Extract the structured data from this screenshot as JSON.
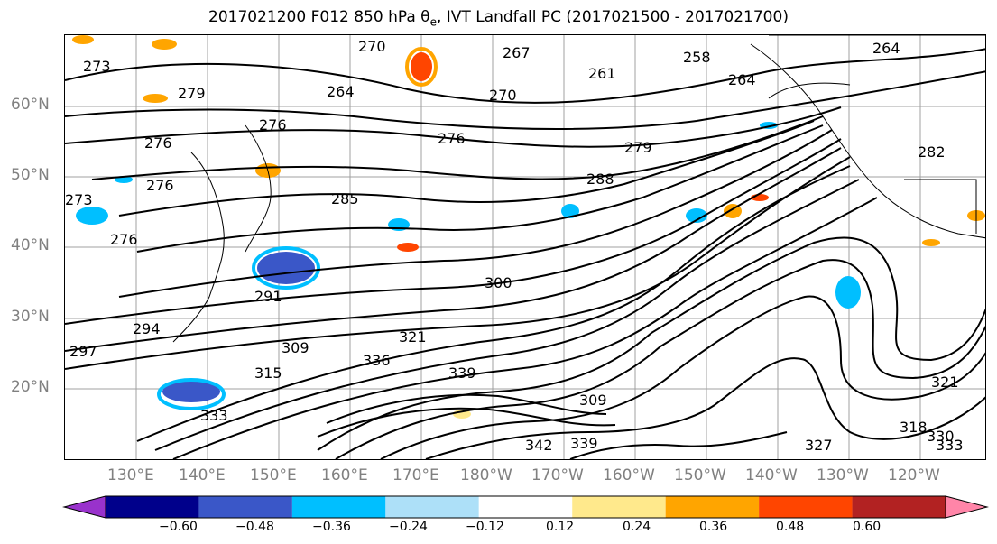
{
  "title": "2017021200 F012 850 hPa θe, IVT Landfall PC (2017021500 - 2017021700)",
  "lat_labels": [
    "60°N",
    "50°N",
    "40°N",
    "30°N",
    "20°N"
  ],
  "lon_labels": [
    "130°E",
    "140°E",
    "150°E",
    "160°E",
    "170°E",
    "180°W",
    "170°W",
    "160°W",
    "150°W",
    "140°W",
    "130°W",
    "120°W"
  ],
  "contour_labels": [
    "273",
    "279",
    "276",
    "276",
    "270",
    "267",
    "264",
    "261",
    "258",
    "264",
    "264",
    "270",
    "276",
    "279",
    "285",
    "288",
    "282",
    "276",
    "273",
    "276",
    "291",
    "294",
    "297",
    "300",
    "309",
    "315",
    "321",
    "333",
    "336",
    "339",
    "342",
    "309",
    "318",
    "321",
    "327",
    "330",
    "333",
    "339"
  ],
  "colorbar": {
    "ticks": [
      "−0.60",
      "−0.48",
      "−0.36",
      "−0.24",
      "−0.12",
      "0.12",
      "0.24",
      "0.36",
      "0.48",
      "0.60"
    ],
    "colors": [
      "#9932CC",
      "#00008B",
      "#3A57C8",
      "#00BFFF",
      "#ADE0F8",
      "#FFFFFF",
      "#FFE98C",
      "#FFA500",
      "#FF4500",
      "#B22222",
      "#FF85A8"
    ]
  }
}
